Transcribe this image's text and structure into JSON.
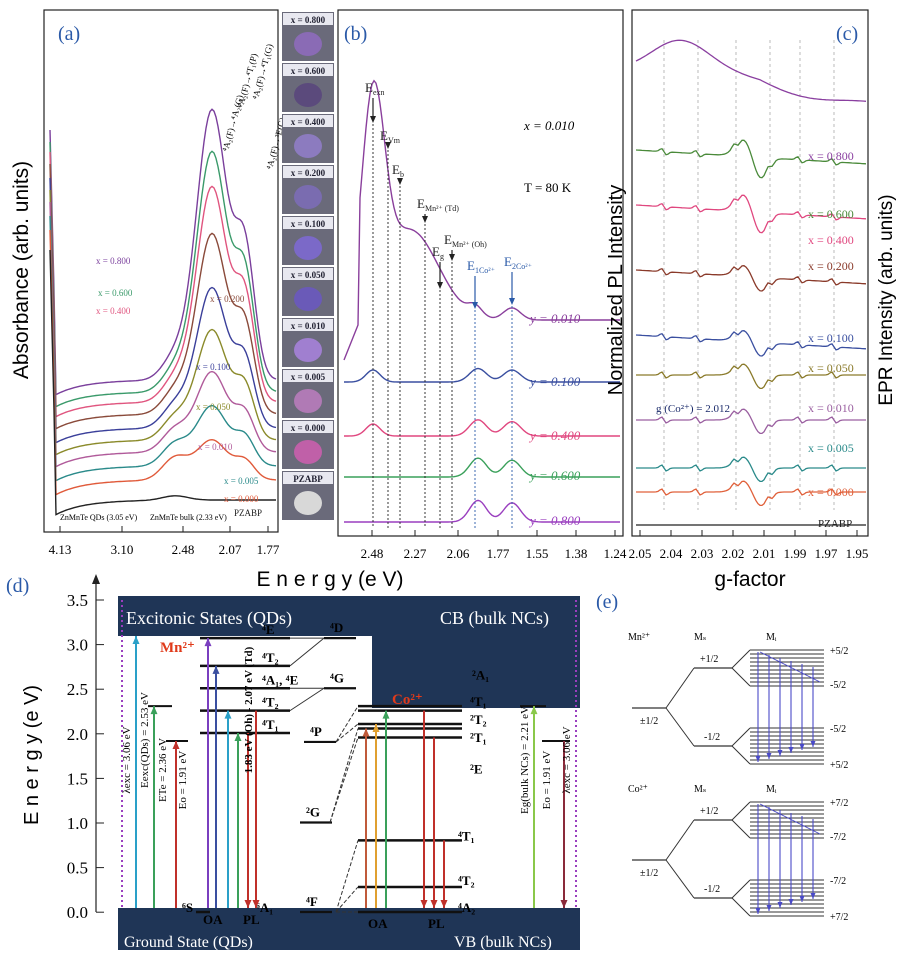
{
  "figure": {
    "panel_labels": {
      "a": "(a)",
      "b": "(b)",
      "c": "(c)",
      "d": "(d)",
      "e": "(e)"
    },
    "x_axis_title": "E n e r g y (e V)",
    "top_ticks_ab": [
      "4.13",
      "3.10",
      "2.48",
      "2.07",
      "1.77"
    ],
    "top_ticks_b": [
      "2.48",
      "2.27",
      "2.06",
      "1.77",
      "1.55",
      "1.38",
      "1.24"
    ]
  },
  "panel_a": {
    "ylabel": "Absorbance (arb. units)",
    "curve_labels": [
      "x = 0.800",
      "x = 0.600",
      "x = 0.400",
      "x = 0.200",
      "x = 0.100",
      "x = 0.050",
      "x = 0.010",
      "x = 0.005",
      "x = 0.000",
      "PZABP"
    ],
    "curve_colors": [
      "#7a3f9c",
      "#3a9a6a",
      "#e0557f",
      "#8a4a3a",
      "#3a3f9a",
      "#8a8a2a",
      "#b05a9a",
      "#2a8a8a",
      "#e05a3a",
      "#222222"
    ],
    "transitions": [
      "⁴A₂(F)→⁴A₂(G)",
      "⁴A₂(F)→⁴T₁(P)",
      "⁴A₂(F)→⁴T₁(G)",
      "⁴A₂(F)→²E(G)"
    ],
    "notes": {
      "qd": "ZnMnTe QDs (3.05 eV)",
      "bulk": "ZnMnTe bulk (2.33 eV)"
    }
  },
  "photo_strip": {
    "labels": [
      "x = 0.800",
      "x = 0.600",
      "x = 0.400",
      "x = 0.200",
      "x = 0.100",
      "x = 0.050",
      "x = 0.010",
      "x = 0.005",
      "x = 0.000",
      "PZABP"
    ],
    "colors": [
      "#8a6bb5",
      "#5b4a7c",
      "#8c7bbf",
      "#7a6cb0",
      "#7b69c8",
      "#6a5ab8",
      "#a07fd0",
      "#b07ab5",
      "#c060a8",
      "#d8d8d8"
    ]
  },
  "panel_b": {
    "labels": {
      "eexn": "E",
      "eexn_sub": "exn",
      "ev": "E",
      "ev_sub": "Vm",
      "eb": "E",
      "eb_sub": "b",
      "emn_td": "E",
      "emn_td_sub": "Mn²⁺ (Td)",
      "emn_oh": "E",
      "emn_oh_sub": "Mn²⁺ (Oh)",
      "eg": "E",
      "eg_sub": "g",
      "e1co": "E",
      "e1co_sub": "1Co²⁺",
      "e2co": "E",
      "e2co_sub": "2Co²⁺"
    },
    "x_note": "x = 0.010",
    "t_note": "T = 80 K",
    "curve_labels": [
      "y = 0.010",
      "y = 0.100",
      "y = 0.400",
      "y = 0.600",
      "y = 0.800"
    ],
    "curve_colors": [
      "#8a3f9c",
      "#3a4fa0",
      "#e0477f",
      "#3aa05a",
      "#9a3fbf"
    ]
  },
  "panel_c": {
    "left_ylabel": "Normalized PL Intensity",
    "right_ylabel": "EPR Intensity (arb. units)",
    "xlabel": "g-factor",
    "ticks": [
      "2.05",
      "2.04",
      "2.03",
      "2.02",
      "2.01",
      "1.99",
      "1.97",
      "1.95"
    ],
    "curve_labels": [
      "x = 0.800",
      "x = 0.600",
      "x = 0.400",
      "x = 0.200",
      "x = 0.100",
      "x = 0.050",
      "x = 0.010",
      "x = 0.005",
      "x = 0.000",
      "PZABP"
    ],
    "curve_colors": [
      "#8a3fa0",
      "#4a8a3a",
      "#e0477f",
      "#8a3a2a",
      "#3a4fa0",
      "#8a7a2a",
      "#9a5fa0",
      "#2a8a8a",
      "#e0603a",
      "#222222"
    ],
    "g_note": "g (Co²⁺) = 2.012"
  },
  "panel_d": {
    "ylabel": "E n e r g y (e V)",
    "yticks": [
      "3.5",
      "3.0",
      "2.5",
      "2.0",
      "1.5",
      "1.0",
      "0.5",
      "0.0"
    ],
    "excitonic": "Excitonic States (QDs)",
    "cb": "CB (bulk NCs)",
    "ground": "Ground State (QDs)",
    "vb": "VB (bulk NCs)",
    "mn": "Mn²⁺",
    "co": "Co²⁺",
    "mn_levels": [
      "⁴E",
      "⁴T₂",
      "⁴A₁, ⁴E",
      "⁴T₂",
      "⁴T₁",
      "⁶S",
      "⁶A₁"
    ],
    "free_levels": [
      "⁴D",
      "⁴G",
      "⁴P",
      "²G",
      "⁴F"
    ],
    "co_levels": [
      "²A₁",
      "⁴T₁",
      "²T₂",
      "²T₁",
      "²E",
      "⁴T₁",
      "⁴T₂",
      "⁴A₂"
    ],
    "vertical_labels": [
      "λexc = 3.06 eV",
      "Eexc(QDs) = 2.53 eV",
      "ETe = 2.36 eV",
      "Eo = 1.91 eV",
      "1.83 eV (Oh) - 2.07 eV (Td)",
      "Eg(bulk NCs) = 2.21 eV",
      "Eo = 1.91 eV",
      "λexc = 3.06 eV"
    ],
    "oa": "OA",
    "pl": "PL",
    "oa2": "OA",
    "pl2": "PL"
  },
  "panel_e": {
    "mn_label": "Mn²⁺",
    "co_label": "Co²⁺",
    "ms": "Mₛ",
    "mi": "Mᵢ",
    "mn_levels": [
      "+5/2",
      "-5/2",
      "-5/2",
      "+5/2"
    ],
    "co_levels": [
      "+7/2",
      "-7/2",
      "-7/2",
      "+7/2"
    ],
    "spin": [
      "±1/2",
      "+1/2",
      "-1/2"
    ]
  }
}
